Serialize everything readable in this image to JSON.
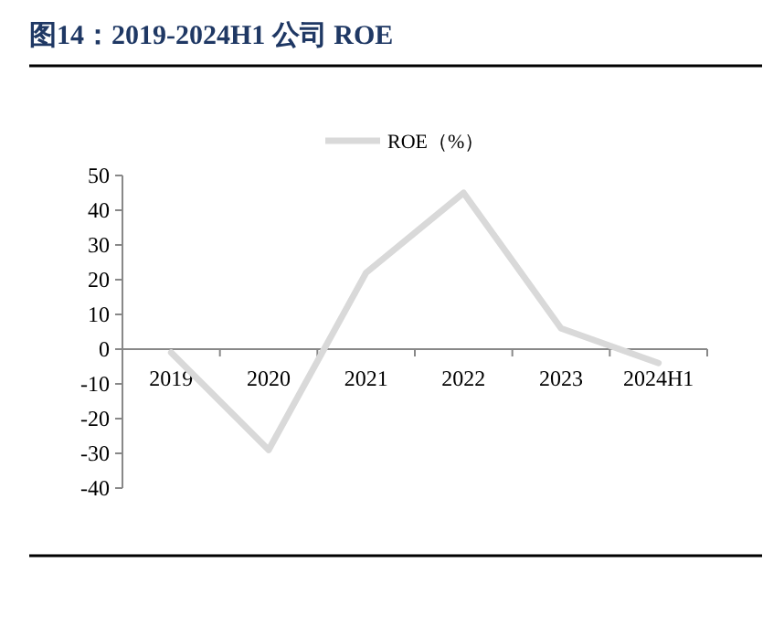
{
  "chart_data": {
    "type": "line",
    "title": "图14：2019-2024H1 公司 ROE",
    "categories": [
      "2019",
      "2020",
      "2021",
      "2022",
      "2023",
      "2024H1"
    ],
    "series": [
      {
        "name": "ROE（%）",
        "color": "#d9d9d9",
        "values": [
          -1,
          -29,
          22,
          45,
          6,
          -4
        ]
      }
    ],
    "ylim": [
      -40,
      50
    ],
    "yticks": [
      -40,
      -30,
      -20,
      -10,
      0,
      10,
      20,
      30,
      40,
      50
    ],
    "legend": "top",
    "grid": false,
    "marker": "none",
    "line_style": "solid"
  }
}
